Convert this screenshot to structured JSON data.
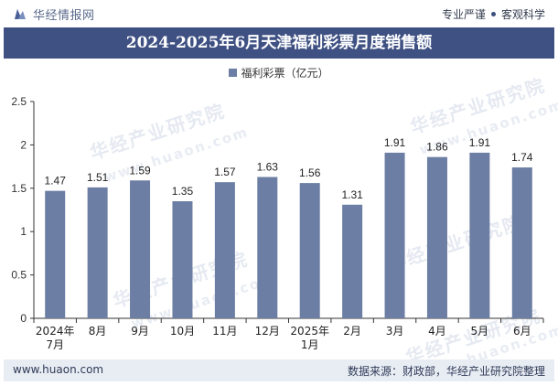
{
  "header": {
    "brand": "华经情报网",
    "slogan_left": "专业严谨",
    "slogan_right": "客观科学"
  },
  "title": "2024-2025年6月天津福利彩票月度销售额",
  "watermark": {
    "text": "华经产业研究院",
    "url": "www.huaon.com"
  },
  "footer": {
    "website": "www.huaon.com",
    "source": "数据来源：财政部，华经产业研究院整理"
  },
  "colors": {
    "bar": "#6c7ea3",
    "title_bg": "#3f5183",
    "footer_bg": "#e8ecf3"
  },
  "chart_data": {
    "type": "bar",
    "categories": [
      "2024年\n7月",
      "8月",
      "9月",
      "10月",
      "11月",
      "12月",
      "2025年\n1月",
      "2月",
      "3月",
      "4月",
      "5月",
      "6月"
    ],
    "series": [
      {
        "name": "福利彩票（亿元）",
        "values": [
          1.47,
          1.51,
          1.59,
          1.35,
          1.57,
          1.63,
          1.56,
          1.31,
          1.91,
          1.86,
          1.91,
          1.74
        ]
      }
    ],
    "yticks": [
      "0",
      "0.5",
      "1",
      "1.5",
      "2",
      "2.5"
    ],
    "ylim": [
      0,
      2.5
    ],
    "legend_position": "top-center",
    "grid": false,
    "data_labels": [
      "1.47",
      "1.51",
      "1.59",
      "1.35",
      "1.57",
      "1.63",
      "1.56",
      "1.31",
      "1.91",
      "1.86",
      "1.91",
      "1.74"
    ]
  }
}
